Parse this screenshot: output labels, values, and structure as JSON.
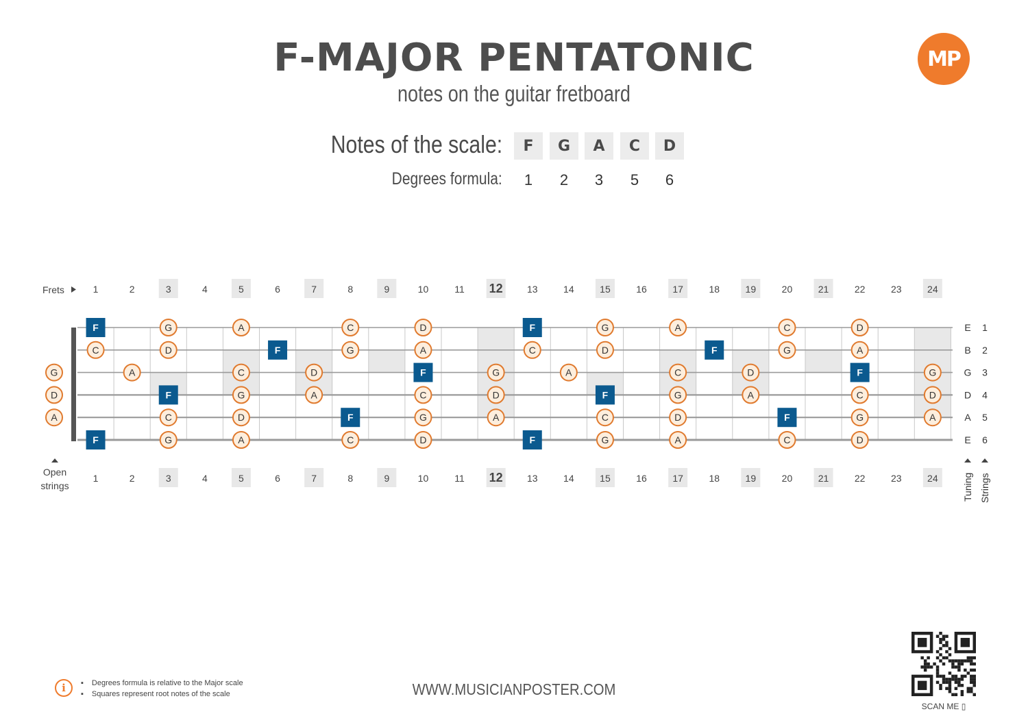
{
  "header": {
    "title": "F-MAJOR PENTATONIC",
    "subtitle": "notes on the guitar fretboard",
    "logo_text": "MP"
  },
  "scale": {
    "notes_label": "Notes of the scale:",
    "notes": [
      "F",
      "G",
      "A",
      "C",
      "D"
    ],
    "degrees_label": "Degrees formula:",
    "degrees": [
      "1",
      "2",
      "3",
      "5",
      "6"
    ]
  },
  "fretboard": {
    "frets_label": "Frets",
    "open_label_line1": "Open",
    "open_label_line2": "strings",
    "tuning_label": "Tuning",
    "strings_label": "Strings",
    "fret_numbers": [
      "1",
      "2",
      "3",
      "4",
      "5",
      "6",
      "7",
      "8",
      "9",
      "10",
      "11",
      "12",
      "13",
      "14",
      "15",
      "16",
      "17",
      "18",
      "19",
      "20",
      "21",
      "22",
      "23",
      "24"
    ],
    "marked_frets": [
      "3",
      "5",
      "7",
      "9",
      "12",
      "15",
      "17",
      "19",
      "21",
      "24"
    ],
    "bold_fret": "12",
    "strings": [
      {
        "tuning": "E",
        "number": "1"
      },
      {
        "tuning": "B",
        "number": "2"
      },
      {
        "tuning": "G",
        "number": "3"
      },
      {
        "tuning": "D",
        "number": "4"
      },
      {
        "tuning": "A",
        "number": "5"
      },
      {
        "tuning": "E",
        "number": "6"
      }
    ],
    "open_notes": [
      {
        "string": 3,
        "note": "G"
      },
      {
        "string": 4,
        "note": "D"
      },
      {
        "string": 5,
        "note": "A"
      }
    ],
    "notes": [
      {
        "string": 1,
        "fret": 1,
        "note": "F",
        "root": true
      },
      {
        "string": 1,
        "fret": 3,
        "note": "G"
      },
      {
        "string": 1,
        "fret": 5,
        "note": "A"
      },
      {
        "string": 1,
        "fret": 8,
        "note": "C"
      },
      {
        "string": 1,
        "fret": 10,
        "note": "D"
      },
      {
        "string": 1,
        "fret": 13,
        "note": "F",
        "root": true
      },
      {
        "string": 1,
        "fret": 15,
        "note": "G"
      },
      {
        "string": 1,
        "fret": 17,
        "note": "A"
      },
      {
        "string": 1,
        "fret": 20,
        "note": "C"
      },
      {
        "string": 1,
        "fret": 22,
        "note": "D"
      },
      {
        "string": 2,
        "fret": 1,
        "note": "C"
      },
      {
        "string": 2,
        "fret": 3,
        "note": "D"
      },
      {
        "string": 2,
        "fret": 6,
        "note": "F",
        "root": true
      },
      {
        "string": 2,
        "fret": 8,
        "note": "G"
      },
      {
        "string": 2,
        "fret": 10,
        "note": "A"
      },
      {
        "string": 2,
        "fret": 13,
        "note": "C"
      },
      {
        "string": 2,
        "fret": 15,
        "note": "D"
      },
      {
        "string": 2,
        "fret": 18,
        "note": "F",
        "root": true
      },
      {
        "string": 2,
        "fret": 20,
        "note": "G"
      },
      {
        "string": 2,
        "fret": 22,
        "note": "A"
      },
      {
        "string": 3,
        "fret": 2,
        "note": "A"
      },
      {
        "string": 3,
        "fret": 5,
        "note": "C"
      },
      {
        "string": 3,
        "fret": 7,
        "note": "D"
      },
      {
        "string": 3,
        "fret": 10,
        "note": "F",
        "root": true
      },
      {
        "string": 3,
        "fret": 12,
        "note": "G"
      },
      {
        "string": 3,
        "fret": 14,
        "note": "A"
      },
      {
        "string": 3,
        "fret": 17,
        "note": "C"
      },
      {
        "string": 3,
        "fret": 19,
        "note": "D"
      },
      {
        "string": 3,
        "fret": 22,
        "note": "F",
        "root": true
      },
      {
        "string": 3,
        "fret": 24,
        "note": "G"
      },
      {
        "string": 4,
        "fret": 3,
        "note": "F",
        "root": true
      },
      {
        "string": 4,
        "fret": 5,
        "note": "G"
      },
      {
        "string": 4,
        "fret": 7,
        "note": "A"
      },
      {
        "string": 4,
        "fret": 10,
        "note": "C"
      },
      {
        "string": 4,
        "fret": 12,
        "note": "D"
      },
      {
        "string": 4,
        "fret": 15,
        "note": "F",
        "root": true
      },
      {
        "string": 4,
        "fret": 17,
        "note": "G"
      },
      {
        "string": 4,
        "fret": 19,
        "note": "A"
      },
      {
        "string": 4,
        "fret": 22,
        "note": "C"
      },
      {
        "string": 4,
        "fret": 24,
        "note": "D"
      },
      {
        "string": 5,
        "fret": 3,
        "note": "C"
      },
      {
        "string": 5,
        "fret": 5,
        "note": "D"
      },
      {
        "string": 5,
        "fret": 8,
        "note": "F",
        "root": true
      },
      {
        "string": 5,
        "fret": 10,
        "note": "G"
      },
      {
        "string": 5,
        "fret": 12,
        "note": "A"
      },
      {
        "string": 5,
        "fret": 15,
        "note": "C"
      },
      {
        "string": 5,
        "fret": 17,
        "note": "D"
      },
      {
        "string": 5,
        "fret": 20,
        "note": "F",
        "root": true
      },
      {
        "string": 5,
        "fret": 22,
        "note": "G"
      },
      {
        "string": 5,
        "fret": 24,
        "note": "A"
      },
      {
        "string": 6,
        "fret": 1,
        "note": "F",
        "root": true
      },
      {
        "string": 6,
        "fret": 3,
        "note": "G"
      },
      {
        "string": 6,
        "fret": 5,
        "note": "A"
      },
      {
        "string": 6,
        "fret": 8,
        "note": "C"
      },
      {
        "string": 6,
        "fret": 10,
        "note": "D"
      },
      {
        "string": 6,
        "fret": 13,
        "note": "F",
        "root": true
      },
      {
        "string": 6,
        "fret": 15,
        "note": "G"
      },
      {
        "string": 6,
        "fret": 17,
        "note": "A"
      },
      {
        "string": 6,
        "fret": 20,
        "note": "C"
      },
      {
        "string": 6,
        "fret": 22,
        "note": "D"
      }
    ]
  },
  "footer": {
    "notes": [
      "Degrees formula is relative to the Major scale",
      "Squares represent root notes of the scale"
    ],
    "website": "WWW.MUSICIANPOSTER.COM",
    "scan_label": "SCAN ME"
  },
  "colors": {
    "accent_orange": "#e07a2e",
    "circle_fill": "#fdeedd",
    "root_blue": "#0b5a8f",
    "marker_gray": "#e8e8e8",
    "line_gray": "#9a9a9a"
  }
}
